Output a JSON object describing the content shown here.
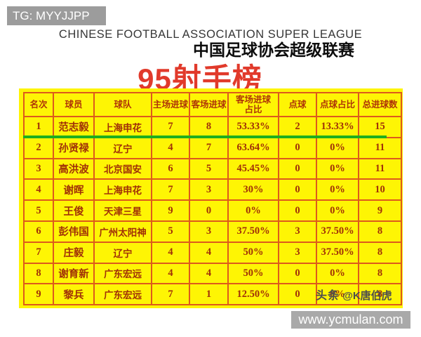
{
  "badge": {
    "text": "TG: MYYJJPP"
  },
  "header": {
    "title_en": "CHINESE FOOTBALL ASSOCIATION SUPER LEAGUE",
    "title_cn": "中国足球协会超级联赛"
  },
  "chart_data": {
    "type": "table",
    "title": "95射手榜",
    "columns": [
      "名次",
      "球员",
      "球队",
      "主场进球",
      "客场进球",
      "客场进球占比",
      "点球",
      "点球占比",
      "总进球数"
    ],
    "rows": [
      [
        "1",
        "范志毅",
        "上海申花",
        "7",
        "8",
        "53.33%",
        "2",
        "13.33%",
        "15"
      ],
      [
        "2",
        "孙贤禄",
        "辽宁",
        "4",
        "7",
        "63.64%",
        "0",
        "0%",
        "11"
      ],
      [
        "3",
        "高洪波",
        "北京国安",
        "6",
        "5",
        "45.45%",
        "0",
        "0%",
        "11"
      ],
      [
        "4",
        "谢晖",
        "上海申花",
        "7",
        "3",
        "30%",
        "0",
        "0%",
        "10"
      ],
      [
        "5",
        "王俊",
        "天津三星",
        "9",
        "0",
        "0%",
        "0",
        "0%",
        "9"
      ],
      [
        "6",
        "彭伟国",
        "广州太阳神",
        "5",
        "3",
        "37.50%",
        "3",
        "37.50%",
        "8"
      ],
      [
        "7",
        "庄毅",
        "辽宁",
        "4",
        "4",
        "50%",
        "3",
        "37.50%",
        "8"
      ],
      [
        "8",
        "谢育新",
        "广东宏远",
        "4",
        "4",
        "50%",
        "0",
        "0%",
        "8"
      ],
      [
        "9",
        "黎兵",
        "广东宏远",
        "7",
        "1",
        "12.50%",
        "0",
        "0%",
        "8"
      ]
    ]
  },
  "watermark": {
    "logo": "头条",
    "handle": "@K唐伯虎"
  },
  "footer": {
    "url": "www.ycmulan.com"
  },
  "colors": {
    "accent_red": "#e13a2b",
    "table_text": "#a03008",
    "panel_yellow": "#fef504",
    "border_orange": "#dd5a1c",
    "highlight_green": "#1fae1f",
    "badge_gray": "#9c9c9c",
    "footer_gray": "#a9a9a9"
  }
}
